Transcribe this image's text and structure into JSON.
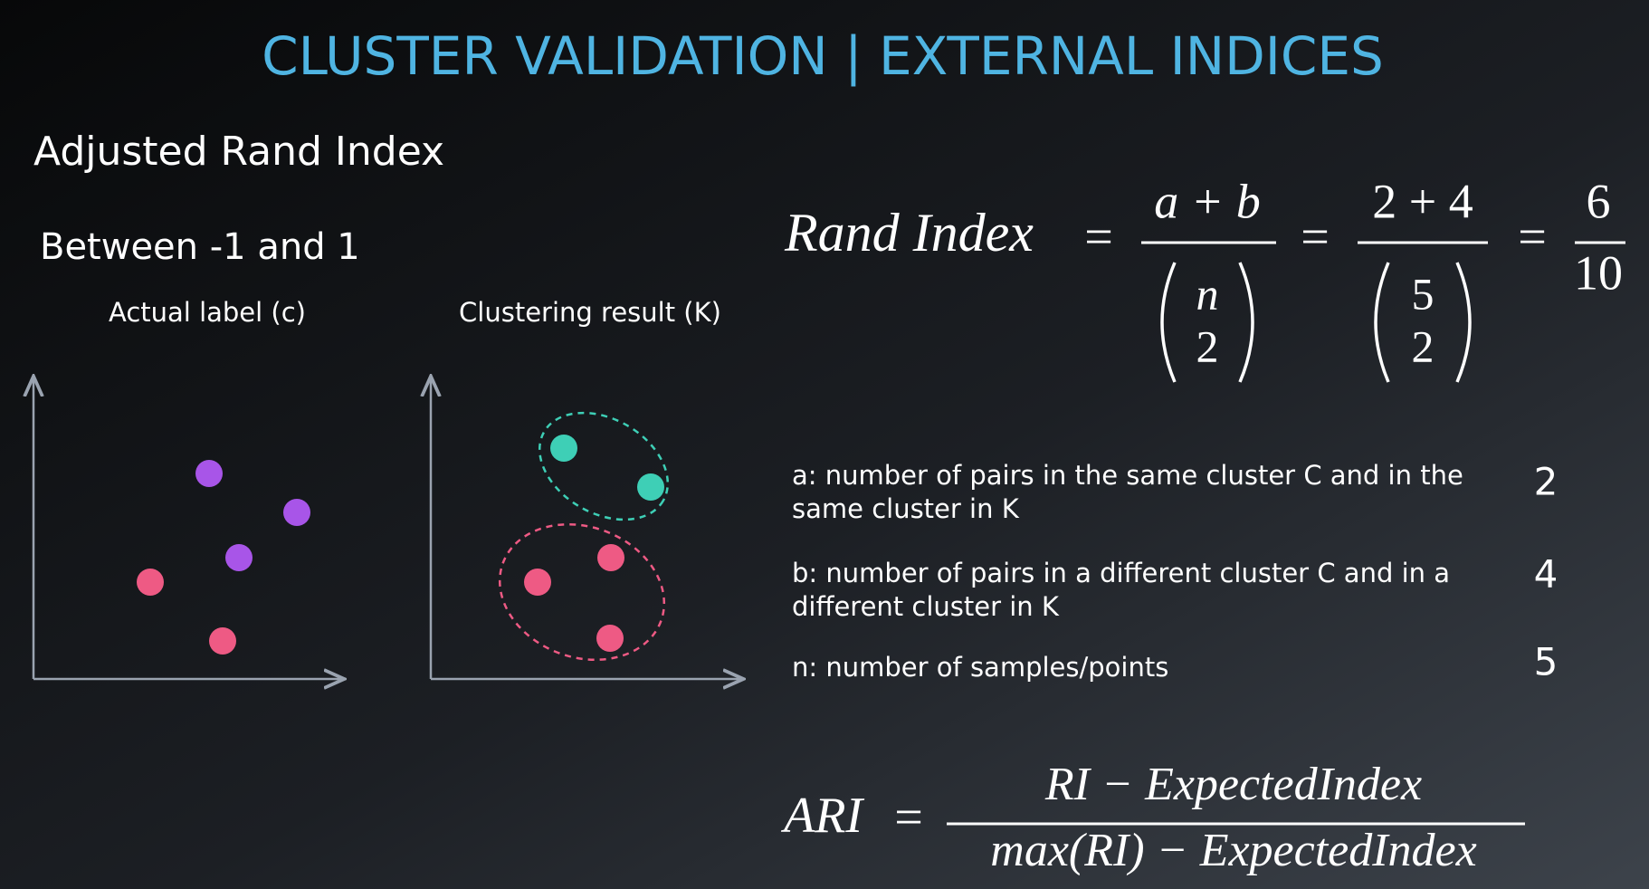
{
  "header": {
    "title": "CLUSTER VALIDATION | EXTERNAL INDICES"
  },
  "section": {
    "heading": "Adjusted Rand Index",
    "range": "Between -1 and 1"
  },
  "plots": [
    {
      "label": "Actual label (c)"
    },
    {
      "label": "Clustering result (K)"
    }
  ],
  "rand_index": {
    "name": "Rand Index",
    "equals": "=",
    "numerator": "a + b",
    "binom_top": "n",
    "binom_bottom": 2,
    "numerator_values": "2 + 4",
    "binom_top_value": 5,
    "binom_bottom_value": 2,
    "result_numerator": 6,
    "result_denominator": 10
  },
  "definitions": [
    {
      "lines": [
        "a: number of pairs in the same cluster C and in the",
        "same cluster in K"
      ],
      "value": 2
    },
    {
      "lines": [
        "b: number of pairs in a different cluster C and in a",
        "different cluster in K"
      ],
      "value": 4
    },
    {
      "lines": [
        "n: number of samples/points"
      ],
      "value": 5
    }
  ],
  "ari": {
    "name": "ARI",
    "equals": "=",
    "numerator": "RI − ExpectedIndex",
    "denominator": "max(RI) − ExpectedIndex"
  }
}
